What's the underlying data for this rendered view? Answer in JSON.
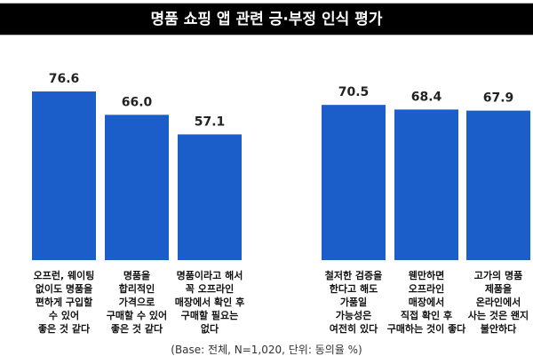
{
  "chart_data": {
    "type": "bar",
    "title": "명품 쇼핑 앱 관련 긍·부정 인식 평가",
    "categories": [
      "오프런, 웨이팅 없이도 명품을 편하게 구입할 수 있어 좋은 것 같다",
      "명품을 합리적인 가격으로 구매할 수 있어 좋은 것 같다",
      "명품이라고 해서 꼭 오프라인 매장에서 확인 후 구매할 필요는 없다",
      "철저한 검증을 한다고 해도 가품일 가능성은 여전히 있다",
      "웬만하면 오프라인 매장에서 직접 확인 후 구매하는 것이 좋다",
      "고가의 명품 제품을 온라인에서 사는 것은 왠지 불안하다"
    ],
    "category_lines": [
      [
        "오프런, 웨이팅",
        "없이도 명품을",
        "편하게 구입할",
        "수 있어",
        "좋은 것 같다"
      ],
      [
        "명품을",
        "합리적인",
        "가격으로",
        "구매할 수 있어",
        "좋은 것 같다"
      ],
      [
        "명품이라고 해서",
        "꼭 오프라인",
        "매장에서 확인 후",
        "구매할 필요는",
        "없다"
      ],
      [
        "철저한 검증을",
        "한다고 해도",
        "가품일",
        "가능성은",
        "여전히 있다"
      ],
      [
        "웬만하면",
        "오프라인",
        "매장에서",
        "직접 확인 후",
        "구매하는 것이 좋다"
      ],
      [
        "고가의 명품",
        "제품을",
        "온라인에서",
        "사는 것은 왠지",
        "불안하다"
      ]
    ],
    "values": [
      76.6,
      66.0,
      57.1,
      70.5,
      68.4,
      67.9
    ],
    "value_labels": [
      "76.6",
      "66.0",
      "57.1",
      "70.5",
      "68.4",
      "67.9"
    ],
    "ylim": [
      0,
      80
    ],
    "xlabel": "",
    "ylabel": "",
    "grid": false,
    "bar_color": "#1b5ec9",
    "note": "(Base: 전체, N=1,020, 단위: 동의율 %)"
  }
}
